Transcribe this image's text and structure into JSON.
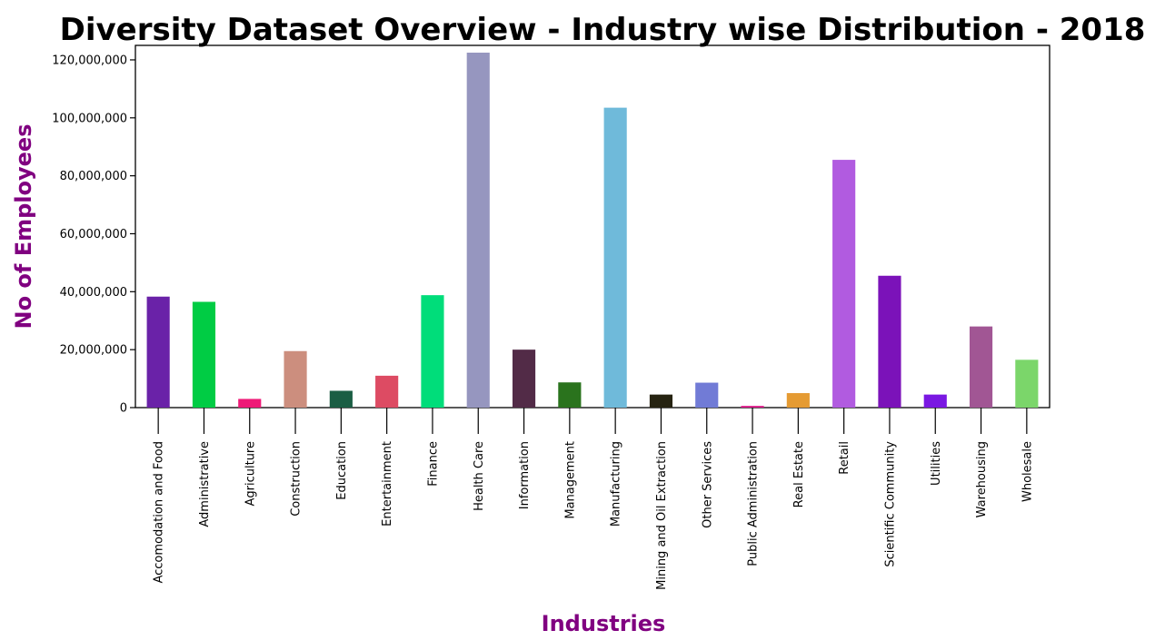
{
  "chart_data": {
    "type": "bar",
    "title": "Diversity Dataset Overview - Industry wise Distribution - 2018",
    "xlabel": "Industries",
    "ylabel": "No of Employees",
    "label_color": "#800080",
    "ylim": [
      0,
      125000000
    ],
    "yticks": [
      0,
      20000000,
      40000000,
      60000000,
      80000000,
      100000000,
      120000000
    ],
    "ytick_labels": [
      "0",
      "20,000,000",
      "40,000,000",
      "60,000,000",
      "80,000,000",
      "100,000,000",
      "120,000,000"
    ],
    "grid": false,
    "legend": "none",
    "categories": [
      "Accomodation and Food",
      "Administrative",
      "Agriculture",
      "Construction",
      "Education",
      "Entertainment",
      "Finance",
      "Health Care",
      "Information",
      "Management",
      "Manufacturing",
      "Mining and Oil Extraction",
      "Other Services",
      "Public Administration",
      "Real Estate",
      "Retail",
      "Scientific Community",
      "Utilities",
      "Warehousing",
      "Wholesale"
    ],
    "values": [
      38300000,
      36500000,
      3000000,
      19500000,
      5800000,
      11000000,
      38800000,
      122500000,
      20000000,
      8700000,
      103500000,
      4500000,
      8600000,
      600000,
      5000000,
      85500000,
      45500000,
      4500000,
      28000000,
      16500000
    ],
    "colors": [
      "#6a22a8",
      "#00cc44",
      "#ee1a77",
      "#cc8e7e",
      "#1b5e44",
      "#dd4b63",
      "#00dd7a",
      "#9696bf",
      "#522b47",
      "#2a731d",
      "#6fbada",
      "#262311",
      "#717bd6",
      "#dd1f8c",
      "#e59b33",
      "#b15be0",
      "#7b12b9",
      "#7a18e2",
      "#a15694",
      "#7bd66a"
    ]
  }
}
